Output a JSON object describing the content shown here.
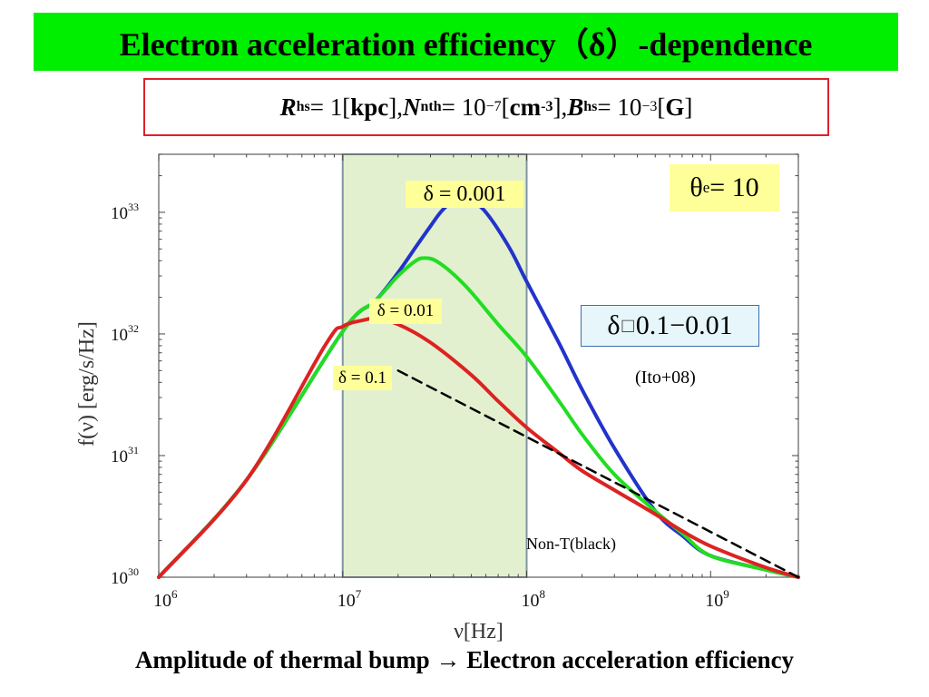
{
  "title": "Electron acceleration efficiency（δ）-dependence",
  "params": {
    "r_sym": "R",
    "r_sub": "hs",
    "r_eq": " = 1[",
    "r_unit": "kpc",
    "r_close": "], ",
    "n_sym": "N",
    "n_sub": "nth",
    "n_eq": " = 10",
    "n_exp": "−7",
    "n_open": "[",
    "n_unit": "cm",
    "n_unit_exp": "-3",
    "n_close": "], ",
    "b_sym": "B",
    "b_sub": "hs",
    "b_eq": " = 10",
    "b_exp": "−3",
    "b_open": "[",
    "b_unit": "G",
    "b_close": "]"
  },
  "theta_label": {
    "sym": "θ",
    "sub": "e",
    "rest": " = 10"
  },
  "delta_labels": {
    "d001": "δ = 0.001",
    "d01": "δ = 0.01",
    "d1": "δ = 0.1"
  },
  "range_box": {
    "sym": "δ",
    "glyph": "□",
    "rest": " 0.1−0.01"
  },
  "citation": "(Ito+08)",
  "nonthermal_label": "Non-T(black)",
  "caption": "Amplitude of thermal bump → Electron acceleration efficiency",
  "colors": {
    "title_bg": "#00ee00",
    "param_border": "#e0202a",
    "label_bg": "#ffff99",
    "shade": "#e2f0cf",
    "range_box_border": "#3a6fb0",
    "range_box_bg": "#e6f6fb"
  },
  "chart_data": {
    "type": "line",
    "xscale": "log",
    "yscale": "log",
    "xlim": [
      1000000,
      3000000000
    ],
    "ylim": [
      1e+30,
      3e+33
    ],
    "xlabel": "ν[Hz]",
    "ylabel": "f(ν) [erg/s/Hz]",
    "xticks": [
      {
        "value": 1000000,
        "base": "10",
        "exp": "6"
      },
      {
        "value": 10000000,
        "base": "10",
        "exp": "7"
      },
      {
        "value": 100000000,
        "base": "10",
        "exp": "8"
      },
      {
        "value": 1000000000,
        "base": "10",
        "exp": "9"
      }
    ],
    "yticks": [
      {
        "value": 1e+30,
        "base": "10",
        "exp": "30"
      },
      {
        "value": 1e+31,
        "base": "10",
        "exp": "31"
      },
      {
        "value": 1e+32,
        "base": "10",
        "exp": "32"
      },
      {
        "value": 1e+33,
        "base": "10",
        "exp": "33"
      }
    ],
    "shaded_range": [
      10000000,
      100000000
    ],
    "series": [
      {
        "color": "#2233cc",
        "x": [
          1000000,
          3000000,
          10000000,
          15000000,
          20000000,
          25000000,
          30000000,
          35000000,
          42000000,
          50000000,
          60000000,
          80000000,
          100000000,
          150000000,
          200000000,
          300000000,
          500000000,
          700000000,
          1000000000,
          2000000000,
          3000000000
        ],
        "y": [
          1e+30,
          6.3e+30,
          1.05e+32,
          1.86e+32,
          3.2e+32,
          5.2e+32,
          7.7e+32,
          1.05e+33,
          1.3e+33,
          1.23e+33,
          1e+33,
          5.2e+32,
          2.7e+32,
          8.4e+31,
          3.5e+31,
          1.15e+31,
          3.5e+30,
          2.2e+30,
          1.5e+30,
          1.15e+30,
          1e+30
        ]
      },
      {
        "color": "#22dd22",
        "x": [
          1000000,
          3000000,
          10000000,
          15000000,
          20000000,
          25000000,
          28000000,
          32000000,
          40000000,
          50000000,
          70000000,
          100000000,
          150000000,
          200000000,
          300000000,
          500000000,
          700000000,
          1000000000,
          2000000000,
          3000000000
        ],
        "y": [
          1e+30,
          6.3e+30,
          1.05e+32,
          1.86e+32,
          3e+32,
          4e+32,
          4.2e+32,
          4e+32,
          3.1e+32,
          2.2e+32,
          1.2e+32,
          6.5e+31,
          2.8e+31,
          1.5e+31,
          7e+30,
          3.5e+30,
          2.3e+30,
          1.5e+30,
          1.15e+30,
          1e+30
        ]
      },
      {
        "color": "#dd2222",
        "x": [
          1000000,
          3000000,
          8000000,
          10000000,
          13000000,
          15000000,
          20000000,
          30000000,
          50000000,
          70000000,
          100000000,
          150000000,
          200000000,
          300000000,
          500000000,
          700000000,
          1000000000,
          2000000000,
          3000000000
        ],
        "y": [
          1e+30,
          6.3e+30,
          8e+31,
          1.15e+32,
          1.3e+32,
          1.33e+32,
          1.2e+32,
          8.5e+31,
          4.6e+31,
          2.8e+31,
          1.7e+31,
          1.05e+31,
          7.5e+30,
          5.2e+30,
          3.3e+30,
          2.4e+30,
          1.8e+30,
          1.2e+30,
          1e+30
        ]
      },
      {
        "color": "#000000",
        "dashed": true,
        "x": [
          20000000,
          3000000000
        ],
        "y": [
          5e+31,
          1e+30
        ]
      }
    ]
  }
}
